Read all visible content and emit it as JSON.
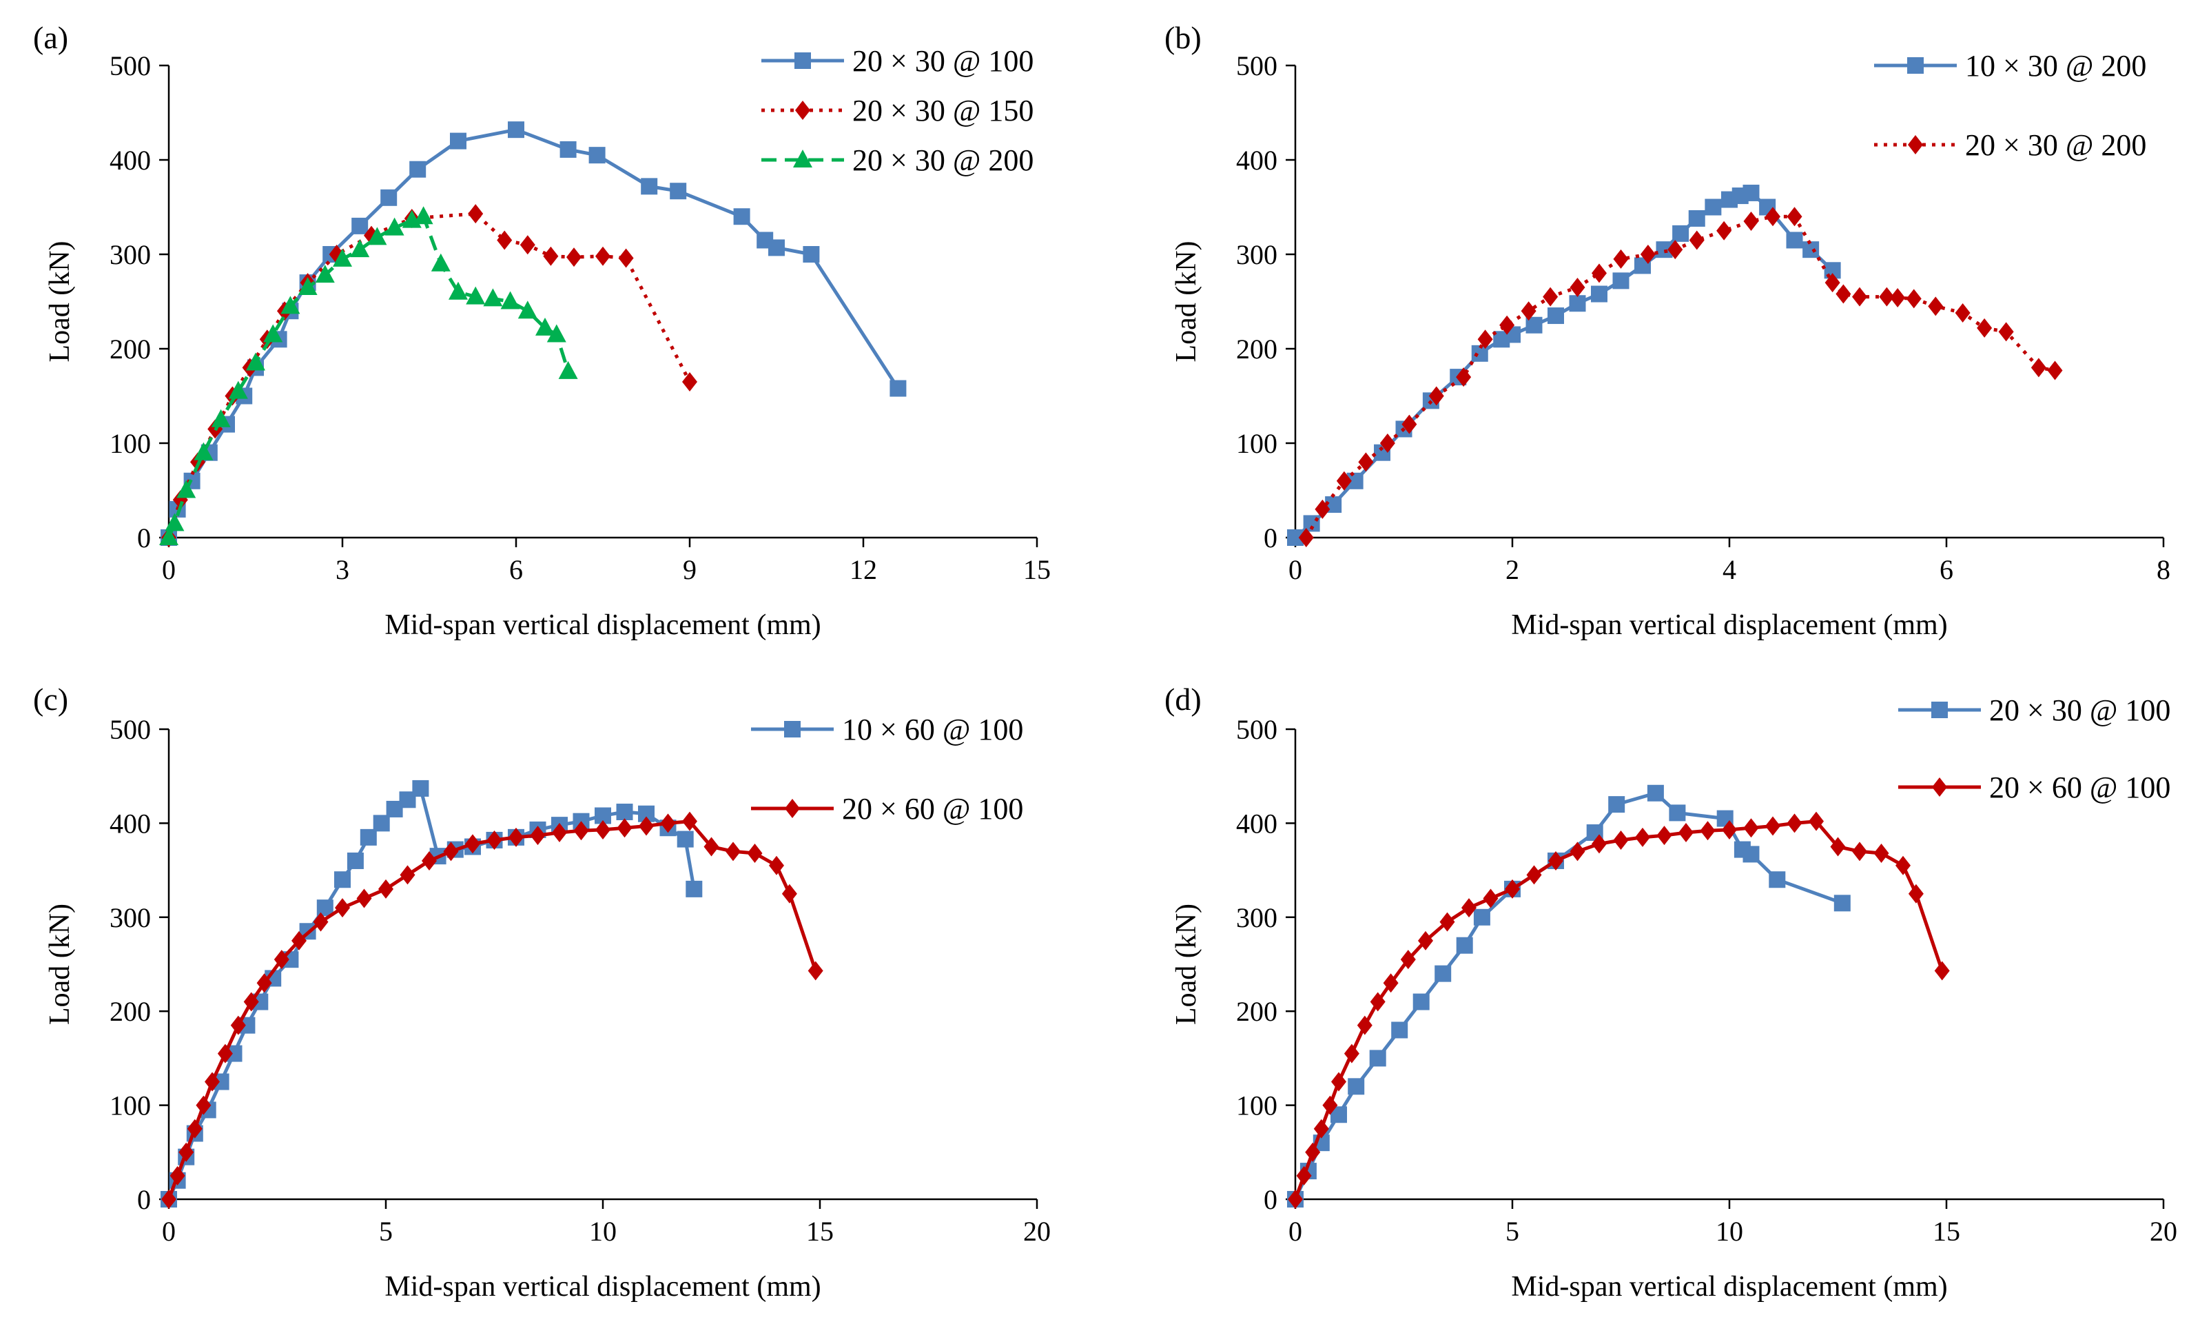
{
  "chart_data": [
    {
      "type": "line",
      "panel_label": "(a)",
      "xlabel": "Mid-span vertical displacement (mm)",
      "ylabel": "Load (kN)",
      "xlim": [
        0,
        15
      ],
      "ylim": [
        0,
        500
      ],
      "xticks": [
        0,
        3,
        6,
        9,
        12,
        15
      ],
      "yticks": [
        0,
        100,
        200,
        300,
        400,
        500
      ],
      "legend_position": "top-right",
      "series": [
        {
          "name": "20 × 30 @ 100",
          "color": "#4f81bd",
          "marker": "square",
          "dash": "solid",
          "x": [
            0,
            0.15,
            0.4,
            0.7,
            1.0,
            1.3,
            1.5,
            1.9,
            2.1,
            2.4,
            2.8,
            3.3,
            3.8,
            4.3,
            5.0,
            6.0,
            6.9,
            7.4,
            8.3,
            8.8,
            9.9,
            10.3,
            10.5,
            11.1,
            12.6
          ],
          "y": [
            0,
            30,
            60,
            90,
            120,
            150,
            180,
            210,
            240,
            270,
            300,
            330,
            360,
            390,
            420,
            432,
            411,
            405,
            372,
            367,
            340,
            315,
            307,
            300,
            158
          ]
        },
        {
          "name": "20 × 30 @ 150",
          "color": "#c00000",
          "marker": "diamond",
          "dash": "dotted",
          "x": [
            0,
            0.2,
            0.5,
            0.8,
            1.1,
            1.4,
            1.7,
            2.0,
            2.4,
            2.9,
            3.5,
            4.2,
            5.3,
            5.8,
            6.2,
            6.6,
            7.0,
            7.5,
            7.9,
            9.0
          ],
          "y": [
            0,
            40,
            80,
            115,
            150,
            180,
            210,
            240,
            270,
            300,
            320,
            338,
            343,
            315,
            310,
            298,
            297,
            298,
            296,
            165
          ]
        },
        {
          "name": "20 × 30 @ 200",
          "color": "#00b050",
          "marker": "triangle",
          "dash": "dashed",
          "x": [
            0,
            0.1,
            0.3,
            0.6,
            0.9,
            1.2,
            1.5,
            1.8,
            2.1,
            2.4,
            2.7,
            3.0,
            3.3,
            3.6,
            3.9,
            4.2,
            4.4,
            4.7,
            5.0,
            5.3,
            5.6,
            5.9,
            6.2,
            6.5,
            6.7,
            6.9
          ],
          "y": [
            0,
            15,
            50,
            90,
            125,
            155,
            185,
            215,
            245,
            265,
            278,
            295,
            305,
            318,
            328,
            336,
            340,
            290,
            260,
            255,
            253,
            250,
            240,
            222,
            215,
            176
          ]
        }
      ]
    },
    {
      "type": "line",
      "panel_label": "(b)",
      "xlabel": "Mid-span vertical displacement  (mm)",
      "ylabel": "Load (kN)",
      "xlim": [
        0,
        8
      ],
      "ylim": [
        0,
        500
      ],
      "xticks": [
        0,
        2,
        4,
        6,
        8
      ],
      "yticks": [
        0,
        100,
        200,
        300,
        400,
        500
      ],
      "legend_position": "top-right",
      "series": [
        {
          "name": "10 × 30 @ 200",
          "color": "#4f81bd",
          "marker": "square",
          "dash": "solid",
          "x": [
            0,
            0.15,
            0.35,
            0.55,
            0.8,
            1.0,
            1.25,
            1.5,
            1.7,
            1.9,
            2.0,
            2.2,
            2.4,
            2.6,
            2.8,
            3.0,
            3.2,
            3.4,
            3.55,
            3.7,
            3.85,
            4.0,
            4.1,
            4.2,
            4.35,
            4.6,
            4.75,
            4.95
          ],
          "y": [
            0,
            15,
            35,
            60,
            90,
            115,
            145,
            170,
            195,
            210,
            215,
            225,
            235,
            248,
            258,
            272,
            288,
            305,
            322,
            338,
            350,
            358,
            362,
            365,
            350,
            315,
            305,
            283
          ]
        },
        {
          "name": "20 × 30 @ 200",
          "color": "#c00000",
          "marker": "diamond",
          "dash": "dotted",
          "x": [
            0.1,
            0.25,
            0.45,
            0.65,
            0.85,
            1.05,
            1.3,
            1.55,
            1.75,
            1.95,
            2.15,
            2.35,
            2.6,
            2.8,
            3.0,
            3.25,
            3.5,
            3.7,
            3.95,
            4.2,
            4.4,
            4.6,
            4.95,
            5.05,
            5.2,
            5.45,
            5.55,
            5.7,
            5.9,
            6.15,
            6.35,
            6.55,
            6.85,
            7.0
          ],
          "y": [
            0,
            30,
            60,
            80,
            100,
            120,
            150,
            170,
            210,
            225,
            240,
            255,
            265,
            280,
            295,
            300,
            305,
            315,
            325,
            335,
            340,
            340,
            270,
            258,
            255,
            255,
            254,
            253,
            245,
            238,
            222,
            218,
            180,
            177
          ]
        }
      ]
    },
    {
      "type": "line",
      "panel_label": "(c)",
      "xlabel": "Mid-span vertical displacement  (mm)",
      "ylabel": "Load (kN)",
      "xlim": [
        0,
        20
      ],
      "ylim": [
        0,
        500
      ],
      "xticks": [
        0,
        5,
        10,
        15,
        20
      ],
      "yticks": [
        0,
        100,
        200,
        300,
        400,
        500
      ],
      "legend_position": "top-right",
      "series": [
        {
          "name": "10 × 60 @ 100",
          "color": "#4f81bd",
          "marker": "square",
          "dash": "solid",
          "x": [
            0,
            0.2,
            0.4,
            0.6,
            0.9,
            1.2,
            1.5,
            1.8,
            2.1,
            2.4,
            2.8,
            3.2,
            3.6,
            4.0,
            4.3,
            4.6,
            4.9,
            5.2,
            5.5,
            5.8,
            6.2,
            6.6,
            7.0,
            7.5,
            8.0,
            8.5,
            9.0,
            9.5,
            10.0,
            10.5,
            11.0,
            11.5,
            11.9,
            12.1
          ],
          "y": [
            0,
            20,
            45,
            70,
            95,
            125,
            155,
            185,
            210,
            235,
            255,
            285,
            310,
            340,
            360,
            385,
            400,
            415,
            425,
            437,
            365,
            372,
            375,
            382,
            385,
            393,
            398,
            402,
            408,
            412,
            410,
            395,
            383,
            330
          ]
        },
        {
          "name": "20 × 60 @ 100",
          "color": "#c00000",
          "marker": "diamond",
          "dash": "solid",
          "x": [
            0,
            0.2,
            0.4,
            0.6,
            0.8,
            1.0,
            1.3,
            1.6,
            1.9,
            2.2,
            2.6,
            3.0,
            3.5,
            4.0,
            4.5,
            5.0,
            5.5,
            6.0,
            6.5,
            7.0,
            7.5,
            8.0,
            8.5,
            9.0,
            9.5,
            10.0,
            10.5,
            11.0,
            11.5,
            12.0,
            12.5,
            13.0,
            13.5,
            14.0,
            14.3,
            14.9
          ],
          "y": [
            0,
            25,
            50,
            75,
            100,
            125,
            155,
            185,
            210,
            230,
            255,
            275,
            295,
            310,
            320,
            330,
            345,
            360,
            370,
            378,
            382,
            385,
            387,
            390,
            392,
            393,
            395,
            397,
            400,
            402,
            375,
            370,
            368,
            355,
            325,
            243
          ]
        }
      ]
    },
    {
      "type": "line",
      "panel_label": "(d)",
      "xlabel": "Mid-span vertical displacement  (mm)",
      "ylabel": "Load (kN)",
      "xlim": [
        0,
        20
      ],
      "ylim": [
        0,
        500
      ],
      "xticks": [
        0,
        5,
        10,
        15,
        20
      ],
      "yticks": [
        0,
        100,
        200,
        300,
        400,
        500
      ],
      "legend_position": "top-right",
      "series": [
        {
          "name": "20 × 30 @ 100",
          "color": "#4f81bd",
          "marker": "square",
          "dash": "solid",
          "x": [
            0,
            0.3,
            0.6,
            1.0,
            1.4,
            1.9,
            2.4,
            2.9,
            3.4,
            3.9,
            4.3,
            5.0,
            6.0,
            6.9,
            7.4,
            8.3,
            8.8,
            9.9,
            10.3,
            10.5,
            11.1,
            12.6
          ],
          "y": [
            0,
            30,
            60,
            90,
            120,
            150,
            180,
            210,
            240,
            270,
            300,
            330,
            360,
            390,
            420,
            432,
            411,
            405,
            372,
            367,
            340,
            315
          ]
        },
        {
          "name": "20 × 60 @ 100",
          "color": "#c00000",
          "marker": "diamond",
          "dash": "solid",
          "x": [
            0,
            0.2,
            0.4,
            0.6,
            0.8,
            1.0,
            1.3,
            1.6,
            1.9,
            2.2,
            2.6,
            3.0,
            3.5,
            4.0,
            4.5,
            5.0,
            5.5,
            6.0,
            6.5,
            7.0,
            7.5,
            8.0,
            8.5,
            9.0,
            9.5,
            10.0,
            10.5,
            11.0,
            11.5,
            12.0,
            12.5,
            13.0,
            13.5,
            14.0,
            14.3,
            14.9
          ],
          "y": [
            0,
            25,
            50,
            75,
            100,
            125,
            155,
            185,
            210,
            230,
            255,
            275,
            295,
            310,
            320,
            330,
            345,
            360,
            370,
            378,
            382,
            385,
            387,
            390,
            392,
            393,
            395,
            397,
            400,
            402,
            375,
            370,
            368,
            355,
            325,
            243
          ]
        }
      ]
    }
  ]
}
